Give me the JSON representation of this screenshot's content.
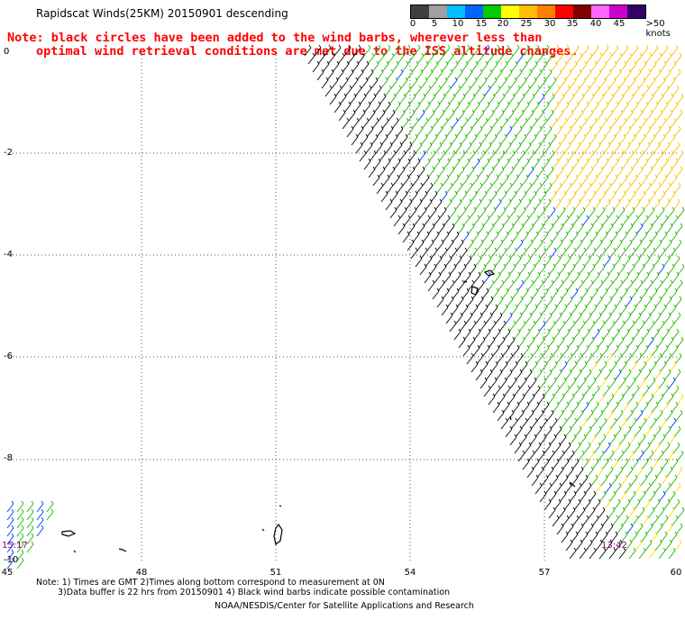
{
  "header": {
    "title": "Rapidscat Winds(25KM) 20150901 descending",
    "note_line1": "Note: black circles have been added to the wind barbs, wherever less than",
    "note_line2": "optimal wind retrieval conditions are met due to the ISS altitude changes."
  },
  "legend": {
    "colors": [
      "#404040",
      "#a0a0a0",
      "#00bfff",
      "#0066ff",
      "#00cc00",
      "#ffff00",
      "#ffbf00",
      "#ff8000",
      "#ff0000",
      "#800000",
      "#ff66ff",
      "#cc00cc",
      "#330066"
    ],
    "labels": [
      "0",
      "5",
      "10",
      "15",
      "20",
      "25",
      "30",
      "35",
      "40",
      "45",
      ">50 knots"
    ]
  },
  "axes": {
    "lat_labels": [
      "0",
      "-2",
      "-4",
      "-6",
      "-8",
      "-10"
    ],
    "lon_labels": [
      "45",
      "48",
      "51",
      "54",
      "57",
      "60"
    ]
  },
  "times": {
    "left": "15:17",
    "right": "13:42"
  },
  "footer": {
    "line1": "Note: 1) Times are GMT 2)Times along bottom correspond to measurement at 0N",
    "line2": "3)Data buffer is 22 hrs from 20150901 4) Black wind barbs indicate possible contamination",
    "line3": "NOAA/NESDIS/Center for Satellite Applications and Research"
  }
}
